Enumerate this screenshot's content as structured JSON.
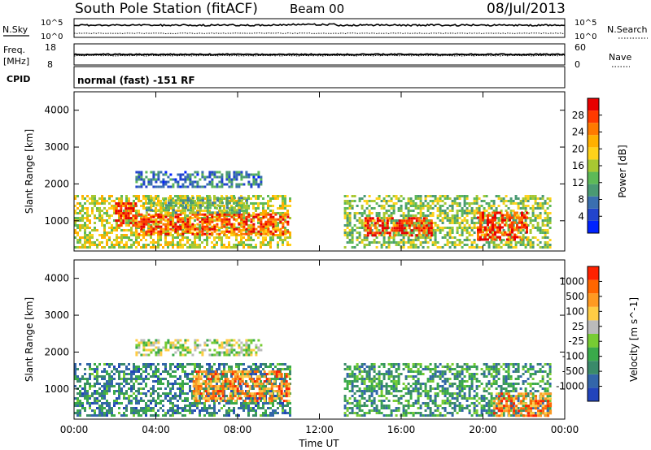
{
  "header": {
    "title": "South Pole Station (fitACF)",
    "beam": "Beam 00",
    "date": "08/Jul/2013"
  },
  "strip_nsky": {
    "left_label": "N.Sky",
    "right_label": "N.Search",
    "left_ticks": [
      "10^5",
      "10^0"
    ],
    "right_ticks": [
      "10^5",
      "10^0"
    ]
  },
  "strip_freq": {
    "left_label_1": "Freq.",
    "left_label_2": "[MHz]",
    "right_label": "Nave",
    "left_ticks": [
      "18",
      "8"
    ],
    "right_ticks": [
      "60",
      "0"
    ]
  },
  "cpid": {
    "label": "CPID",
    "text": "normal (fast) -151 RF"
  },
  "chart_data": [
    {
      "type": "heatmap",
      "title": "",
      "ylabel": "Slant Range [km]",
      "ylim": [
        180,
        4500
      ],
      "yticks": [
        "1000",
        "2000",
        "3000",
        "4000"
      ],
      "xticks": [
        "00:00",
        "04:00",
        "08:00",
        "12:00",
        "16:00",
        "20:00",
        "00:00"
      ],
      "xlim_hours": [
        0,
        24
      ],
      "colorbar": {
        "label": "Power [dB]",
        "ticks": [
          "4",
          "8",
          "12",
          "16",
          "20",
          "24",
          "28"
        ],
        "colors": [
          "#0022ff",
          "#2244cc",
          "#3a6fb0",
          "#4a9a73",
          "#5db957",
          "#a8c832",
          "#ffd21a",
          "#ffb000",
          "#ff7a00",
          "#ff3a00",
          "#e80000"
        ]
      },
      "regions": [
        {
          "t0": 0.0,
          "t1": 10.6,
          "r0": 300,
          "r1": 1700,
          "level": 0.55
        },
        {
          "t0": 2.0,
          "t1": 3.0,
          "r0": 900,
          "r1": 1500,
          "level": 0.95
        },
        {
          "t0": 3.0,
          "t1": 10.5,
          "r0": 650,
          "r1": 1200,
          "level": 0.85
        },
        {
          "t0": 3.0,
          "t1": 9.2,
          "r0": 1950,
          "r1": 2350,
          "level": 0.25
        },
        {
          "t0": 3.5,
          "t1": 8.5,
          "r0": 1200,
          "r1": 1650,
          "level": 0.4
        },
        {
          "t0": 13.2,
          "t1": 23.3,
          "r0": 300,
          "r1": 1700,
          "level": 0.45
        },
        {
          "t0": 14.2,
          "t1": 17.5,
          "r0": 600,
          "r1": 1100,
          "level": 0.9
        },
        {
          "t0": 19.7,
          "t1": 22.2,
          "r0": 500,
          "r1": 1250,
          "level": 0.9
        }
      ]
    },
    {
      "type": "heatmap",
      "title": "",
      "ylabel": "Slant Range [km]",
      "xlabel": "Time UT",
      "ylim": [
        180,
        4500
      ],
      "yticks": [
        "1000",
        "2000",
        "3000",
        "4000"
      ],
      "xticks": [
        "00:00",
        "04:00",
        "08:00",
        "12:00",
        "16:00",
        "20:00",
        "00:00"
      ],
      "xlim_hours": [
        0,
        24
      ],
      "colorbar": {
        "label": "Velocity [m s^-1]",
        "ticks": [
          "1000",
          "500",
          "100",
          "25",
          "-25",
          "-100",
          "-500",
          "-1000"
        ],
        "colors": [
          "#2244bb",
          "#3366aa",
          "#3a8a6a",
          "#3aaa4a",
          "#77cc33",
          "#bbbbbb",
          "#ffcc44",
          "#ff9a22",
          "#ff6600",
          "#ff2200"
        ]
      },
      "regions": [
        {
          "t0": 0.0,
          "t1": 10.6,
          "r0": 300,
          "r1": 1700,
          "level": 0.25
        },
        {
          "t0": 5.8,
          "t1": 10.5,
          "r0": 700,
          "r1": 1500,
          "level": 0.78
        },
        {
          "t0": 3.0,
          "t1": 9.2,
          "r0": 1950,
          "r1": 2350,
          "level": 0.5
        },
        {
          "t0": 13.2,
          "t1": 23.3,
          "r0": 300,
          "r1": 1700,
          "level": 0.3
        },
        {
          "t0": 20.5,
          "t1": 23.3,
          "r0": 300,
          "r1": 900,
          "level": 0.8
        }
      ]
    }
  ]
}
